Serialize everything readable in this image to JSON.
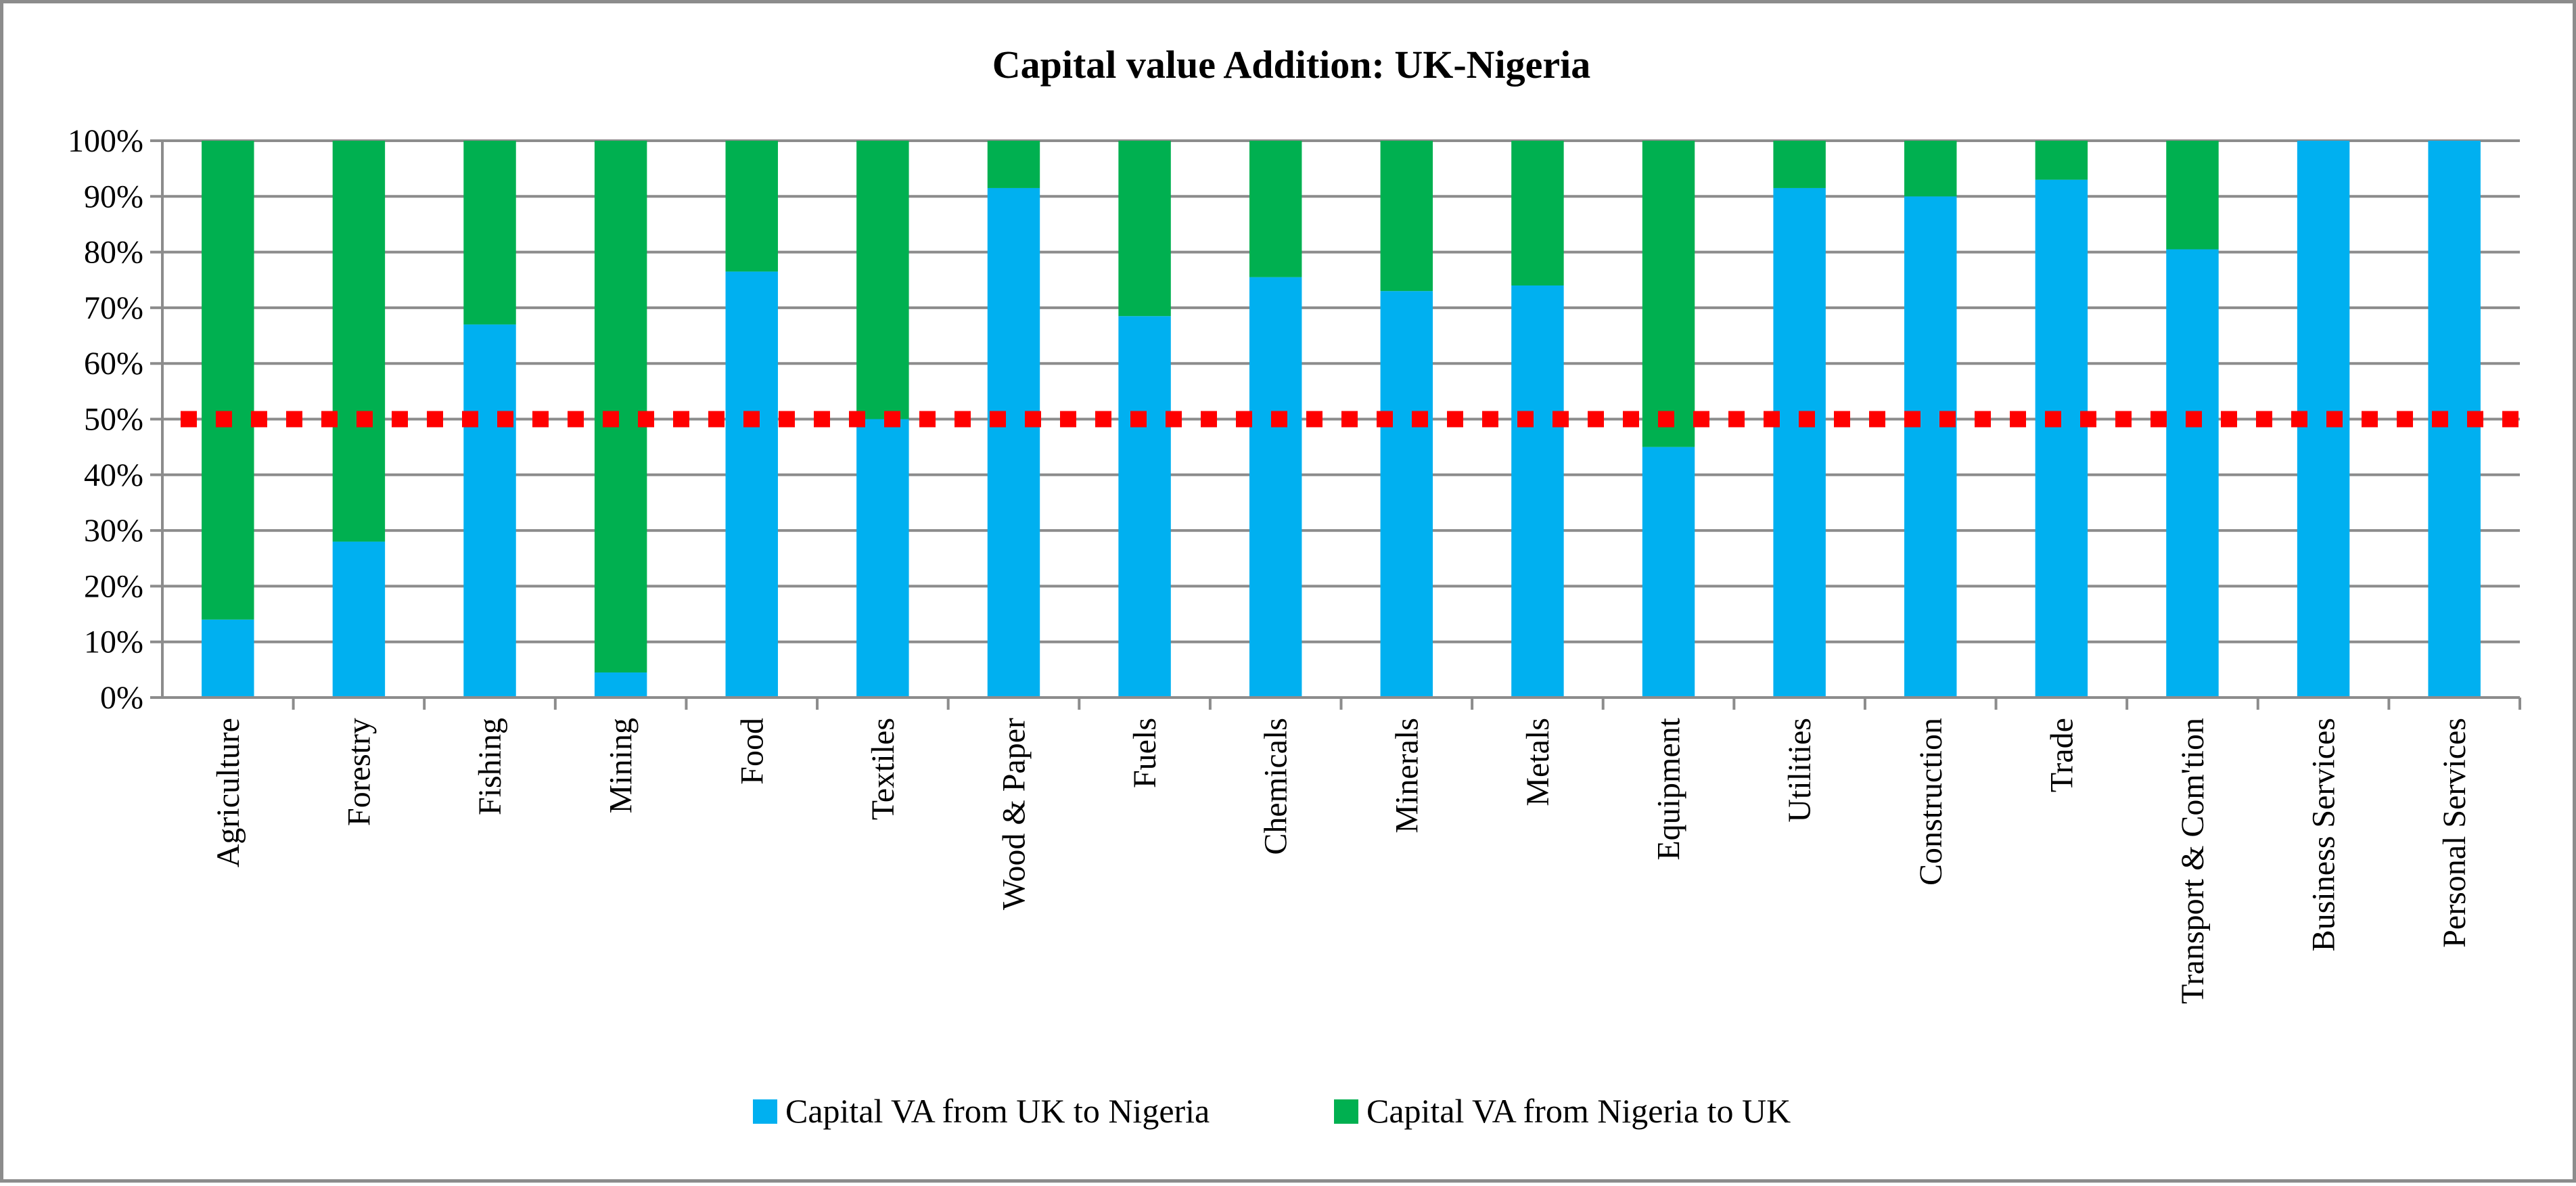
{
  "chart_data": {
    "type": "bar",
    "stacked": true,
    "title": "Capital value Addition: UK-Nigeria",
    "xlabel": "",
    "ylabel": "",
    "ylim": [
      0,
      100
    ],
    "yticks": [
      "0%",
      "10%",
      "20%",
      "30%",
      "40%",
      "50%",
      "60%",
      "70%",
      "80%",
      "90%",
      "100%"
    ],
    "categories": [
      "Agriculture",
      "Forestry",
      "Fishing",
      "Mining",
      "Food",
      "Textiles",
      "Wood & Paper",
      "Fuels",
      "Chemicals",
      "Minerals",
      "Metals",
      "Equipment",
      "Utilities",
      "Construction",
      "Trade",
      "Transport & Com'tion",
      "Business Services",
      "Personal Services"
    ],
    "series": [
      {
        "name": "Capital VA from UK to Nigeria",
        "color": "#00b0f0",
        "values": [
          14,
          28,
          67,
          4.5,
          76.5,
          50,
          91.5,
          68.5,
          75.5,
          73,
          74,
          45,
          91.5,
          90,
          93,
          80.5,
          100,
          100
        ]
      },
      {
        "name": "Capital VA from Nigeria to UK",
        "color": "#00b050",
        "values": [
          86,
          72,
          33,
          95.5,
          23.5,
          50,
          8.5,
          31.5,
          24.5,
          27,
          26,
          55,
          8.5,
          10,
          7,
          19.5,
          0,
          0
        ]
      }
    ],
    "reference_line": {
      "value": 50,
      "color": "#ff0000",
      "style": "dotted"
    },
    "gridlines": true,
    "legend_position": "bottom"
  }
}
